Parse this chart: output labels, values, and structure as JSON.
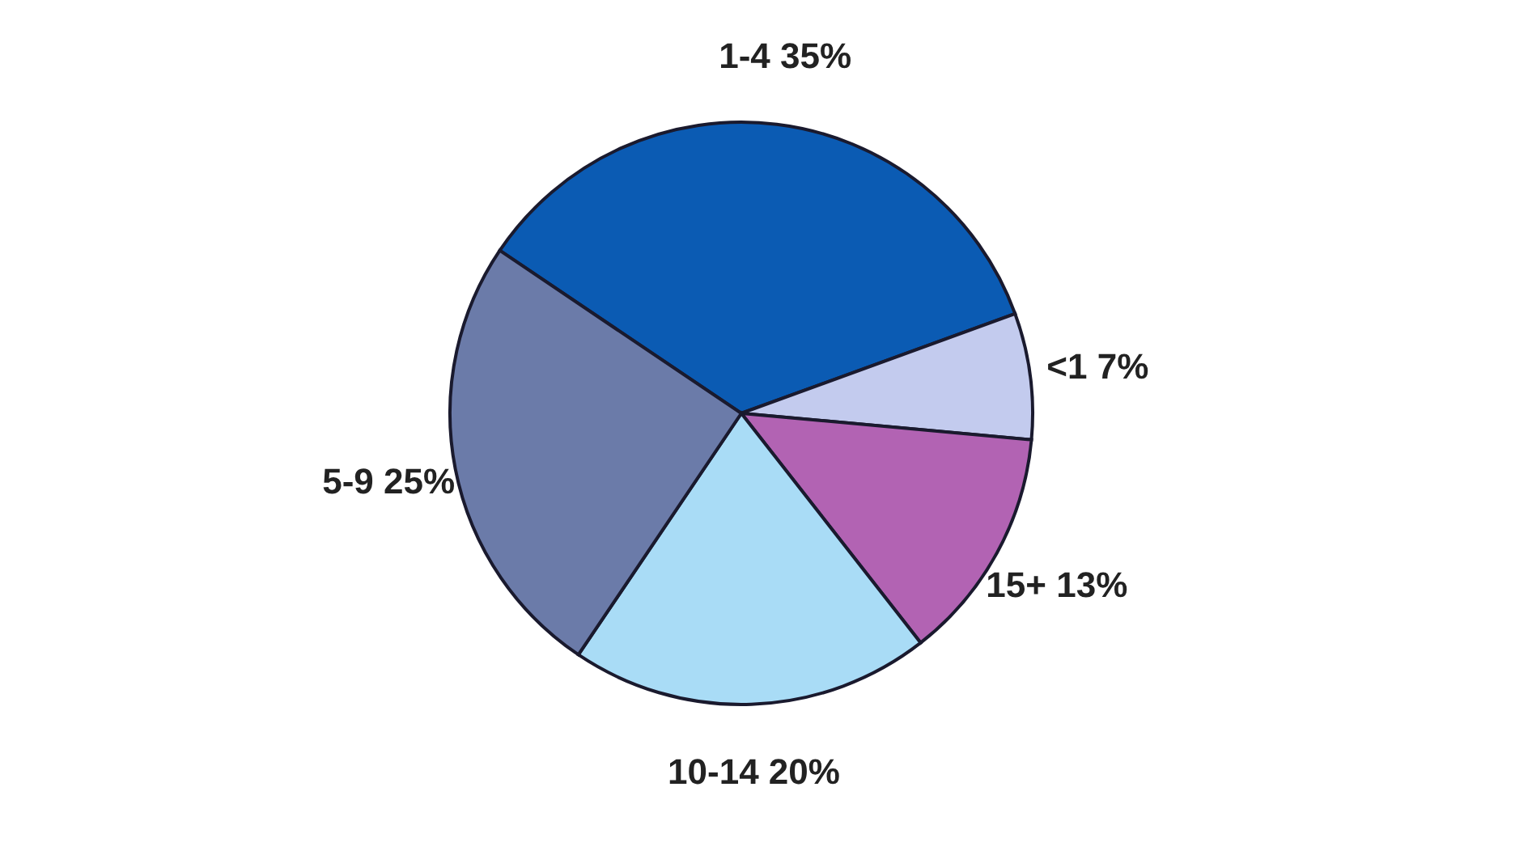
{
  "chart_data": {
    "type": "pie",
    "categories": [
      "1-4",
      "<1",
      "15+",
      "10-14",
      "5-9"
    ],
    "values": [
      35,
      7,
      13,
      20,
      25
    ],
    "value_labels": [
      "35%",
      "7%",
      "13%",
      "20%",
      "25%"
    ],
    "colors": [
      "#0b5bb3",
      "#c3cbee",
      "#b263b3",
      "#a9dcf6",
      "#6b7ba9"
    ]
  }
}
